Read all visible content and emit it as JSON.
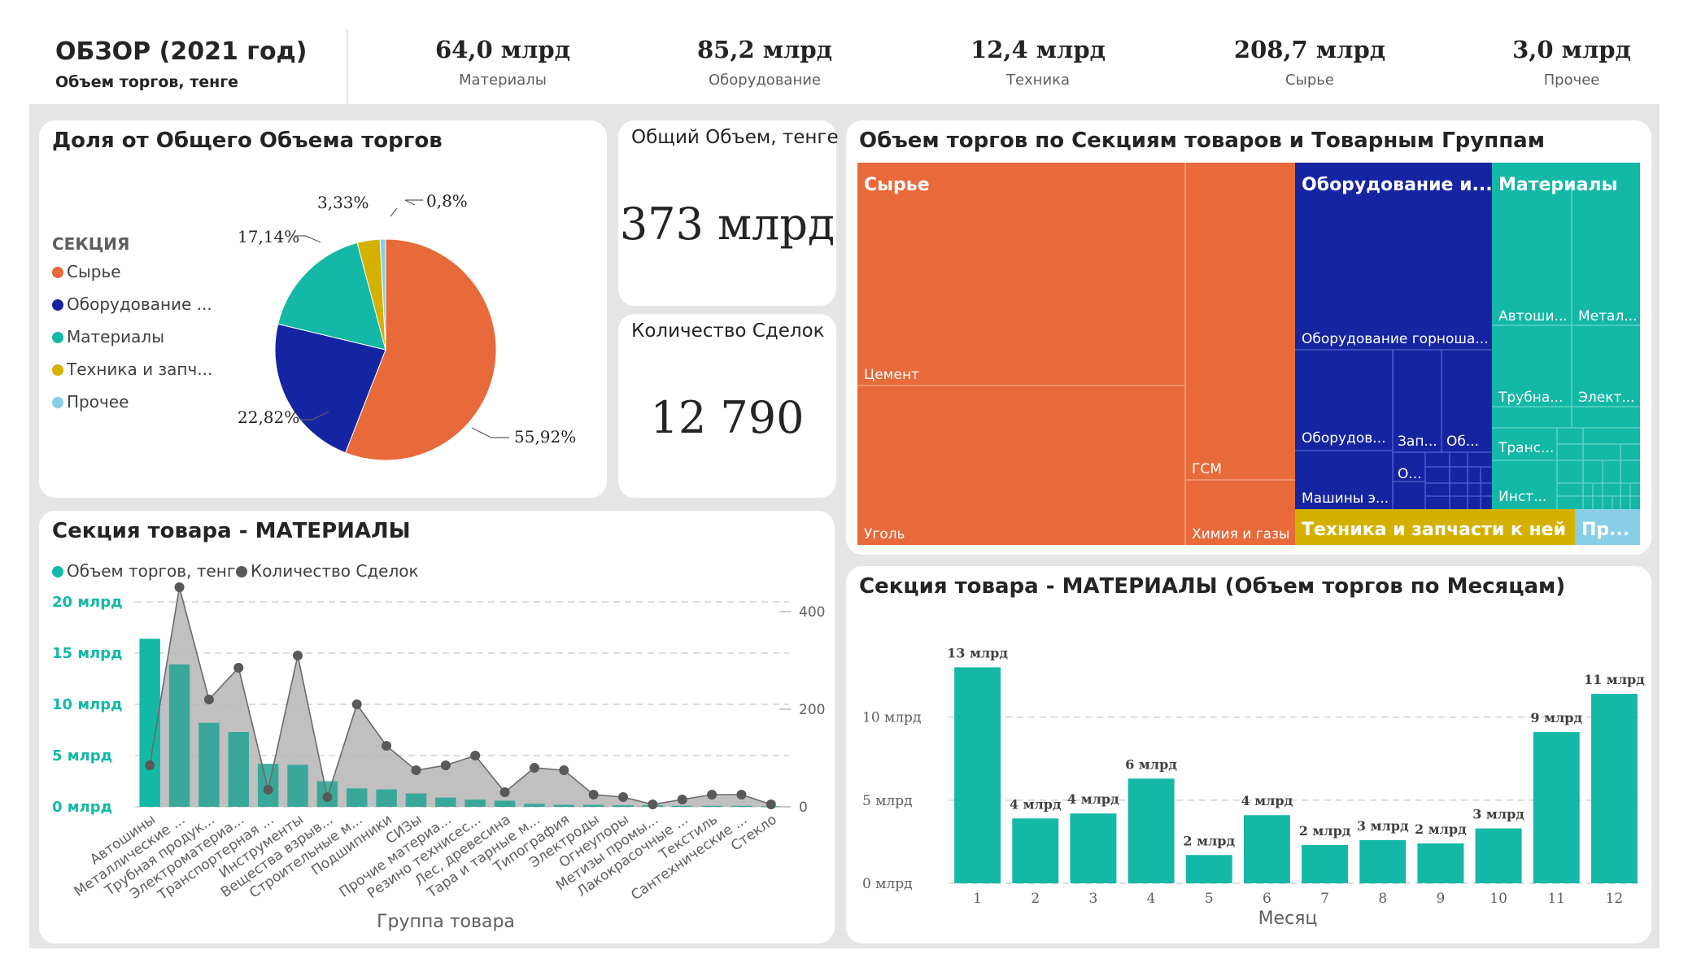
{
  "header": {
    "title": "ОБЗОР (2021 год)",
    "subtitle": "Объем торгов, тенге",
    "kpis": [
      {
        "value": "64,0 млрд",
        "label": "Материалы"
      },
      {
        "value": "85,2 млрд",
        "label": "Оборудование"
      },
      {
        "value": "12,4 млрд",
        "label": "Техника"
      },
      {
        "value": "208,7 млрд",
        "label": "Сырье"
      },
      {
        "value": "3,0 млрд",
        "label": "Прочее"
      }
    ]
  },
  "pie": {
    "title": "Доля от Общего Объема торгов",
    "legend_title": "СЕКЦИЯ",
    "legend": [
      "Сырье",
      "Оборудование ...",
      "Материалы",
      "Техника и запч...",
      "Прочее"
    ],
    "labels": [
      "55,92%",
      "22,82%",
      "17,14%",
      "3,33%",
      "0,8%"
    ]
  },
  "total_card": {
    "label": "Общий Объем, тенге",
    "value": "373 млрд"
  },
  "deals_card": {
    "label": "Количество Сделок",
    "value": "12 790"
  },
  "treemap": {
    "title": "Объем торгов по Секциям товаров и Товарным Группам",
    "sections": {
      "raw": "Сырье",
      "equipment": "Оборудование и...",
      "materials": "Материалы",
      "tech": "Техника и запчасти к ней",
      "other": "Пр..."
    },
    "cells": {
      "cement": "Цемент",
      "coal": "Уголь",
      "gsm": "ГСМ",
      "chem": "Химия и газы",
      "mining": "Оборудование горноша...",
      "oborud": "Оборудов...",
      "zap": "Зап...",
      "ob": "Об...",
      "o": "О...",
      "mashiny": "Машины э...",
      "avtoshi": "Автоши...",
      "metal": "Метал...",
      "truba": "Трубна...",
      "elekt": "Элект...",
      "trans": "Транс...",
      "inst": "Инст..."
    }
  },
  "combo": {
    "title": "Секция товара - МАТЕРИАЛЫ",
    "legend": [
      "Объем торгов, тенге",
      "Количество Сделок"
    ],
    "x_title": "Группа товара"
  },
  "monthly": {
    "title": "Секция товара - МАТЕРИАЛЫ (Объем торгов по Месяцам)",
    "x_title": "Месяц"
  },
  "chart_data": [
    {
      "type": "pie",
      "title": "Доля от Общего Объема торгов",
      "categories": [
        "Сырье",
        "Оборудование ...",
        "Материалы",
        "Техника и запч...",
        "Прочее"
      ],
      "values": [
        55.92,
        22.82,
        17.14,
        3.33,
        0.8
      ],
      "colors": [
        "#e8693a",
        "#1525a2",
        "#14b8a6",
        "#d4b000",
        "#87cfe6"
      ]
    },
    {
      "type": "bar",
      "title": "Секция товара - МАТЕРИАЛЫ",
      "xlabel": "Группа товара",
      "categories": [
        "Автошины",
        "Металлические ...",
        "Трубная продук...",
        "Электроматериа...",
        "Транспортерная ...",
        "Инструменты",
        "Вещества взрыв...",
        "Строительные м...",
        "Подшипники",
        "СИЗы",
        "Прочие материа...",
        "Резино технисес...",
        "Лес, древесина",
        "Тара и тарные м...",
        "Типография",
        "Электроды",
        "Огнеупоры",
        "Метизы промы...",
        "Лакокрасочные ...",
        "Текстиль",
        "Сантехнические ...",
        "Стекло"
      ],
      "series": [
        {
          "name": "Объем торгов, тенге",
          "axis": "left",
          "unit": "млрд",
          "values": [
            16.4,
            13.9,
            8.2,
            7.3,
            4.2,
            4.1,
            2.5,
            1.8,
            1.7,
            1.3,
            0.9,
            0.7,
            0.6,
            0.3,
            0.2,
            0.2,
            0.15,
            0.15,
            0.1,
            0.1,
            0.1,
            0.05
          ]
        },
        {
          "name": "Количество Сделок",
          "axis": "right",
          "values": [
            85,
            450,
            220,
            285,
            35,
            310,
            20,
            210,
            125,
            75,
            85,
            105,
            30,
            80,
            75,
            25,
            20,
            5,
            15,
            25,
            25,
            5
          ]
        }
      ],
      "ylim_left": [
        0,
        20
      ],
      "left_ticks": [
        "0 млрд",
        "5 млрд",
        "10 млрд",
        "15 млрд",
        "20 млрд"
      ],
      "ylim_right": [
        0,
        500
      ],
      "right_ticks": [
        "0",
        "200",
        "400"
      ],
      "colors": [
        "#14b8a6",
        "#595959"
      ]
    },
    {
      "type": "bar",
      "title": "Секция товара - МАТЕРИАЛЫ (Объем торгов по Месяцам)",
      "xlabel": "Месяц",
      "categories": [
        "1",
        "2",
        "3",
        "4",
        "5",
        "6",
        "7",
        "8",
        "9",
        "10",
        "11",
        "12"
      ],
      "values": [
        13.0,
        3.9,
        4.2,
        6.3,
        1.7,
        4.1,
        2.3,
        2.6,
        2.4,
        3.3,
        9.1,
        11.4
      ],
      "data_labels": [
        "13 млрд",
        "4 млрд",
        "4 млрд",
        "6 млрд",
        "2 млрд",
        "4 млрд",
        "2 млрд",
        "3 млрд",
        "2 млрд",
        "3 млрд",
        "9 млрд",
        "11 млрд"
      ],
      "ylim": [
        0,
        14
      ],
      "ticks": [
        "0 млрд",
        "5 млрд",
        "10 млрд"
      ],
      "color": "#14b8a6"
    }
  ]
}
